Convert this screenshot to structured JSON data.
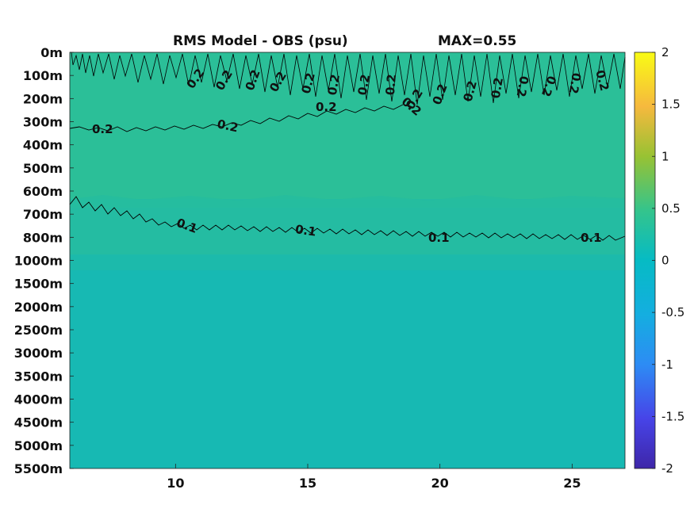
{
  "chart_data": {
    "type": "heatmap",
    "title": "RMS Model - OBS (psu)",
    "max_label": "MAX=0.55",
    "xlabel": "",
    "ylabel": "",
    "x_ticks": [
      10,
      15,
      20,
      25
    ],
    "xlim": [
      6,
      27
    ],
    "y_tick_labels": [
      "0m",
      "100m",
      "200m",
      "300m",
      "400m",
      "500m",
      "600m",
      "700m",
      "800m",
      "1000m",
      "1500m",
      "2000m",
      "2500m",
      "3000m",
      "3500m",
      "4000m",
      "4500m",
      "5000m",
      "5500m"
    ],
    "colorbar": {
      "min": -2,
      "max": 2,
      "ticks": [
        2,
        1.5,
        1,
        0.5,
        0,
        -0.5,
        -1,
        -1.5,
        -2
      ],
      "colormap": "parula"
    },
    "contours": [
      {
        "level": 0.2,
        "label": "0.2",
        "approx_depth": "300m"
      },
      {
        "level": 0.1,
        "label": "0.1",
        "approx_depth": "800m"
      }
    ],
    "colors": {
      "upper_layer": "#2bbf98",
      "mid_layer": "#21bba6",
      "deep_layer": "#17b9b3"
    }
  }
}
